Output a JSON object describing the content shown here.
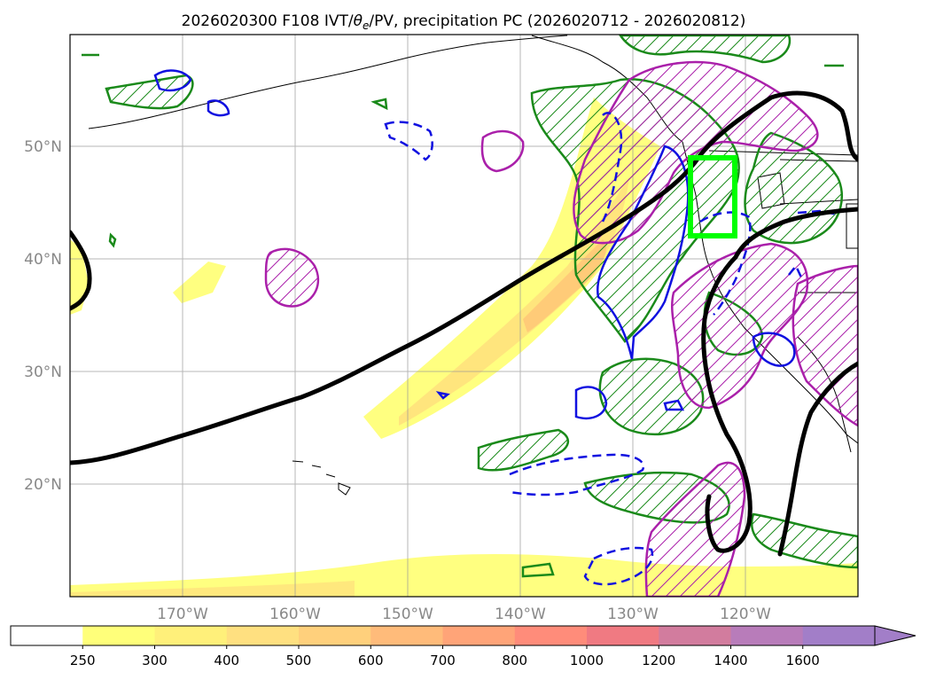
{
  "title": {
    "prefix": "2026020300 F108 IVT/",
    "theta": "θ",
    "theta_sub": "e",
    "suffix": "/PV, precipitation PC (2026020712 - 2026020812)"
  },
  "map": {
    "lat_labels": [
      "50°N",
      "40°N",
      "30°N",
      "20°N"
    ],
    "lon_labels": [
      "170°W",
      "160°W",
      "150°W",
      "140°W",
      "130°W",
      "120°W"
    ],
    "lat_range": [
      10,
      60
    ],
    "lon_range": [
      -180,
      -110
    ],
    "box_color": "#00ff00",
    "ivt_fill_colors": [
      "#ffff80",
      "#ffd978",
      "#ffc070"
    ]
  },
  "colorbar": {
    "ticks": [
      "250",
      "300",
      "400",
      "500",
      "600",
      "700",
      "800",
      "1000",
      "1200",
      "1400",
      "1600"
    ],
    "colors": [
      "#ffffff",
      "#ffff7a",
      "#fff07a",
      "#ffe080",
      "#ffd07c",
      "#ffbb7a",
      "#ffa478",
      "#ff8c7a",
      "#f07a82",
      "#d27c9e",
      "#b87cba",
      "#a27ec8"
    ]
  }
}
